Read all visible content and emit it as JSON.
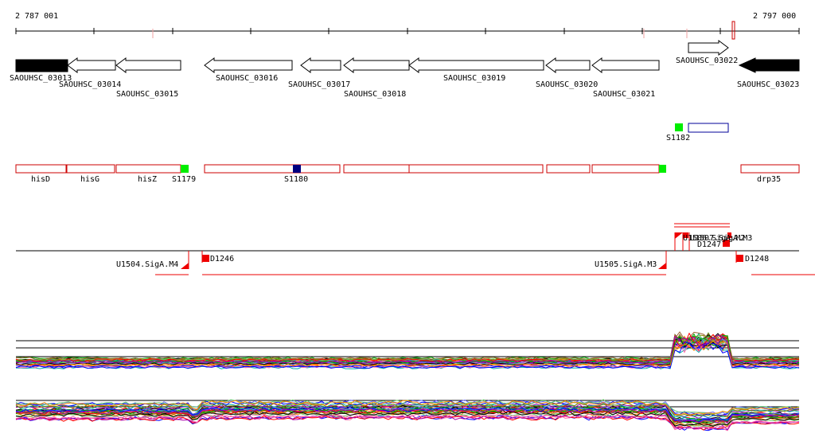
{
  "ruler": {
    "start_label": "2 787 001",
    "end_label": "2 797 000"
  },
  "genes_track": {
    "genes": [
      {
        "label": "SAOUHSC_03013",
        "strand": "-",
        "style": "filled"
      },
      {
        "label": "SAOUHSC_03014",
        "strand": "-",
        "style": "outline"
      },
      {
        "label": "SAOUHSC_03015",
        "strand": "-",
        "style": "outline"
      },
      {
        "label": "SAOUHSC_03016",
        "strand": "-",
        "style": "outline"
      },
      {
        "label": "SAOUHSC_03017",
        "strand": "-",
        "style": "outline"
      },
      {
        "label": "SAOUHSC_03018",
        "strand": "-",
        "style": "outline"
      },
      {
        "label": "SAOUHSC_03019",
        "strand": "-",
        "style": "outline"
      },
      {
        "label": "SAOUHSC_03020",
        "strand": "-",
        "style": "outline"
      },
      {
        "label": "SAOUHSC_03021",
        "strand": "-",
        "style": "outline"
      },
      {
        "label": "SAOUHSC_03022",
        "strand": "+",
        "style": "outline"
      },
      {
        "label": "SAOUHSC_03023",
        "strand": "-",
        "style": "filled"
      }
    ]
  },
  "upper_feature": {
    "label": "S1182",
    "color": "#00ee00"
  },
  "operon_track": {
    "labels": [
      "hisD",
      "hisG",
      "hisZ",
      "S1179",
      "S1180",
      "drp35"
    ],
    "marker_colors": {
      "green": "#00ee00",
      "navy": "#000080"
    },
    "box_color": "#cc0000"
  },
  "tss_track": {
    "labels": [
      "U1504.SigA.M4",
      "D1246",
      "U1505.SigA.M3",
      "D1247",
      "D1248",
      "U1506.SigA.M2",
      "U1507.SigA.M3"
    ],
    "color": "#ff0000"
  },
  "expression_tracks": {
    "colors": [
      "#000000",
      "#ff0000",
      "#00aa00",
      "#0000ff",
      "#ff8800",
      "#aa00aa",
      "#00aaaa",
      "#888800",
      "#996633",
      "#ff66aa",
      "#6666ff",
      "#66cc66"
    ]
  }
}
